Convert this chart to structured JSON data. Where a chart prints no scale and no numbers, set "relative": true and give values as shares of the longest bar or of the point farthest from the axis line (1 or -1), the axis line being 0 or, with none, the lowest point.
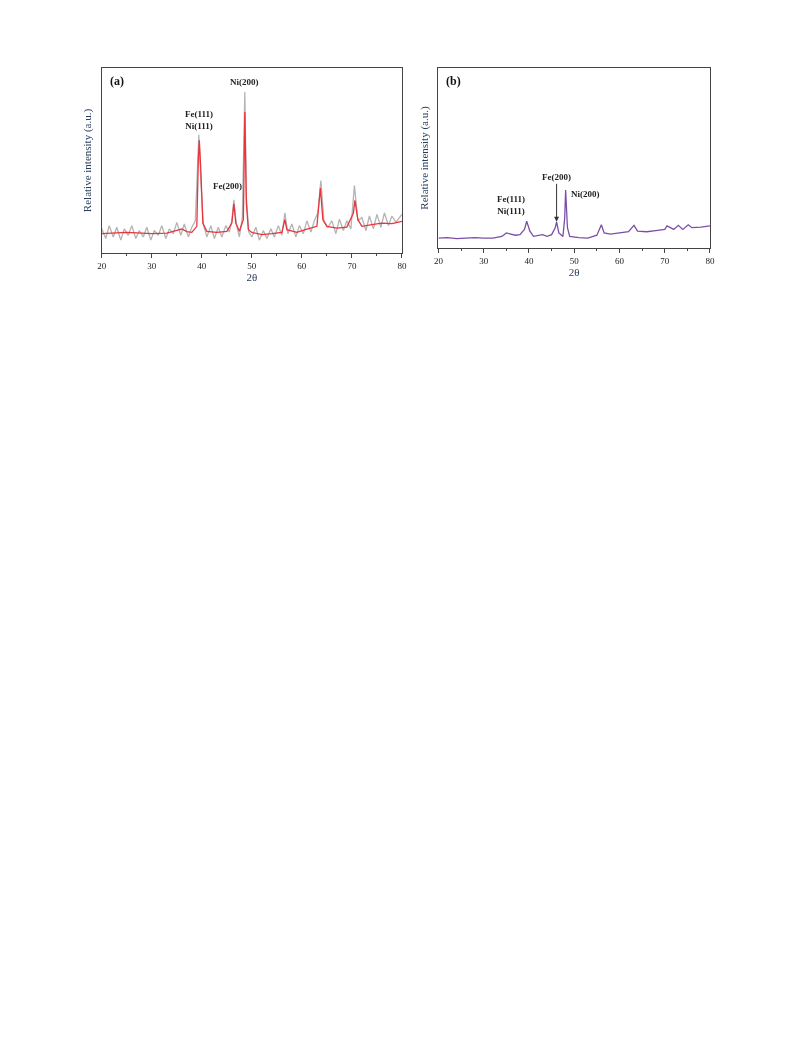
{
  "chart_data": [
    {
      "type": "line",
      "relative": true,
      "xlabel": "2θ",
      "ylabel": "Relative intensity (a.u.)",
      "xlim": [
        20,
        80
      ],
      "xticks": [
        20,
        30,
        40,
        50,
        60,
        70,
        80
      ],
      "line_style": "solid",
      "annotations": [
        "(a)",
        {
          "text": "Fe(111)\nNi(111)",
          "x": 39.5,
          "y": 0.73
        },
        {
          "text": "Fe(200)",
          "x": 46.4,
          "y": 0.33
        },
        {
          "text": "Ni(200)",
          "x": 48.6,
          "y": 1
        }
      ],
      "series": [
        {
          "color": "#b4b4b4",
          "x": [
            20,
            20.8,
            21.5,
            22.3,
            23,
            23.8,
            24.5,
            25.3,
            26,
            26.8,
            27.5,
            28.3,
            29,
            29.8,
            30.5,
            31.3,
            32,
            32.8,
            33.5,
            34.3,
            35,
            35.8,
            36.5,
            37.3,
            38,
            38.7,
            39.1,
            39.4,
            39.8,
            40.3,
            41,
            41.8,
            42.5,
            43.3,
            44,
            44.8,
            45.5,
            46,
            46.4,
            46.9,
            47.5,
            48.1,
            48.4,
            48.6,
            48.9,
            49.4,
            50,
            50.8,
            51.5,
            52.3,
            53,
            53.8,
            54.5,
            55.3,
            56,
            56.6,
            57.2,
            58,
            58.8,
            59.5,
            60.3,
            61,
            61.8,
            62.5,
            63.2,
            63.8,
            64.4,
            65.2,
            66,
            66.8,
            67.5,
            68.3,
            69,
            69.8,
            70.5,
            71.2,
            72,
            72.8,
            73.5,
            74.3,
            75,
            75.8,
            76.5,
            77.3,
            78,
            78.8,
            79.5,
            80
          ],
          "values": [
            0.15,
            0.09,
            0.17,
            0.1,
            0.16,
            0.08,
            0.15,
            0.11,
            0.17,
            0.09,
            0.14,
            0.1,
            0.16,
            0.08,
            0.14,
            0.11,
            0.17,
            0.09,
            0.15,
            0.12,
            0.19,
            0.11,
            0.18,
            0.1,
            0.16,
            0.2,
            0.5,
            0.735,
            0.45,
            0.18,
            0.1,
            0.17,
            0.09,
            0.16,
            0.1,
            0.17,
            0.13,
            0.2,
            0.33,
            0.18,
            0.1,
            0.22,
            0.7,
            1,
            0.35,
            0.13,
            0.1,
            0.16,
            0.08,
            0.14,
            0.09,
            0.15,
            0.1,
            0.17,
            0.11,
            0.25,
            0.12,
            0.18,
            0.1,
            0.17,
            0.12,
            0.2,
            0.13,
            0.2,
            0.25,
            0.45,
            0.2,
            0.16,
            0.2,
            0.12,
            0.21,
            0.14,
            0.2,
            0.15,
            0.42,
            0.2,
            0.22,
            0.14,
            0.23,
            0.15,
            0.24,
            0.16,
            0.25,
            0.17,
            0.23,
            0.19,
            0.22,
            0.24
          ]
        },
        {
          "color": "#e8343c",
          "x": [
            20,
            22,
            25,
            28,
            30,
            33,
            35,
            36,
            37,
            38,
            39,
            39.3,
            39.5,
            39.8,
            40.2,
            41,
            43,
            45,
            46,
            46.4,
            46.8,
            47.5,
            48.3,
            48.6,
            48.9,
            49.3,
            50,
            52,
            54,
            56,
            56.6,
            57,
            59,
            61,
            63,
            63.7,
            64.2,
            65,
            67,
            69,
            70.3,
            70.6,
            71.2,
            72,
            74,
            76,
            78,
            80
          ],
          "values": [
            0.12,
            0.124,
            0.128,
            0.124,
            0.12,
            0.124,
            0.141,
            0.149,
            0.133,
            0.128,
            0.166,
            0.58,
            0.7,
            0.518,
            0.186,
            0.135,
            0.128,
            0.135,
            0.186,
            0.306,
            0.186,
            0.135,
            0.207,
            0.876,
            0.311,
            0.145,
            0.128,
            0.114,
            0.12,
            0.128,
            0.207,
            0.145,
            0.128,
            0.149,
            0.166,
            0.404,
            0.207,
            0.166,
            0.155,
            0.161,
            0.248,
            0.327,
            0.207,
            0.166,
            0.176,
            0.186,
            0.182,
            0.197
          ]
        }
      ]
    },
    {
      "type": "line",
      "relative": true,
      "xlabel": "2θ",
      "ylabel": "Relative intensity (a.u.)",
      "xlim": [
        20,
        80
      ],
      "xticks": [
        20,
        30,
        40,
        50,
        60,
        70,
        80
      ],
      "line_style": "solid",
      "annotations": [
        "(b)",
        {
          "text": "Fe(111)\nNi(111)",
          "x": 39.5,
          "y": 0.46
        },
        {
          "text": "Fe(200)",
          "x": 46.1,
          "y": 0.45
        },
        {
          "text": "Ni(200)",
          "x": 48.1,
          "y": 1
        }
      ],
      "series": [
        {
          "color": "#7b4fa8",
          "x": [
            20,
            22,
            24,
            26,
            28,
            30,
            32,
            34,
            35,
            36,
            37,
            38,
            39,
            39.5,
            40.2,
            41,
            43,
            44,
            45,
            45.8,
            46.1,
            46.6,
            47.5,
            47.9,
            48.1,
            48.5,
            49,
            51,
            53,
            55,
            56,
            56.6,
            58,
            60,
            62,
            63.2,
            64,
            66,
            68,
            70,
            70.5,
            72,
            73,
            74,
            75.2,
            76,
            78,
            80
          ],
          "values": [
            0.17,
            0.18,
            0.16,
            0.17,
            0.18,
            0.17,
            0.17,
            0.2,
            0.26,
            0.24,
            0.22,
            0.23,
            0.32,
            0.46,
            0.29,
            0.2,
            0.23,
            0.2,
            0.23,
            0.35,
            0.45,
            0.26,
            0.2,
            0.52,
            1,
            0.35,
            0.2,
            0.18,
            0.17,
            0.22,
            0.4,
            0.26,
            0.24,
            0.26,
            0.28,
            0.39,
            0.29,
            0.28,
            0.3,
            0.32,
            0.38,
            0.32,
            0.39,
            0.32,
            0.4,
            0.35,
            0.36,
            0.38
          ]
        }
      ]
    }
  ]
}
